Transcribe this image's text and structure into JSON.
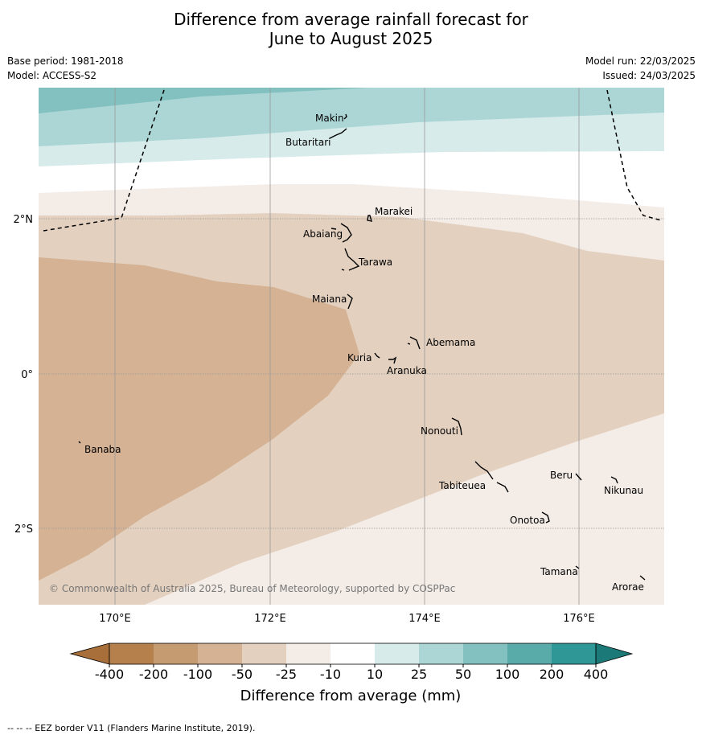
{
  "title_line1": "Difference from average rainfall forecast for",
  "title_line2": "June to August 2025",
  "base_period": "Base period: 1981-2018",
  "model": "Model: ACCESS-S2",
  "model_run": "Model run: 22/03/2025",
  "issued": "Issued: 24/03/2025",
  "lat_labels": [
    "2°N",
    "0°",
    "2°S"
  ],
  "lon_labels": [
    "170°E",
    "172°E",
    "174°E",
    "176°E"
  ],
  "copyright": "© Commonwealth of Australia 2025, Bureau of Meteorology, supported by COSPPac",
  "places": [
    "Makin",
    "Butaritari",
    "Marakei",
    "Abaiang",
    "Tarawa",
    "Maiana",
    "Abemama",
    "Kuria",
    "Aranuka",
    "Nonouti",
    "Banaba",
    "Tabiteuea",
    "Beru",
    "Nikunau",
    "Onotoa",
    "Tamana",
    "Arorae"
  ],
  "legend": {
    "ticks": [
      "-400",
      "-200",
      "-100",
      "-50",
      "-25",
      "-10",
      "10",
      "25",
      "50",
      "100",
      "200",
      "400"
    ],
    "colors": [
      "#a86f3a",
      "#b6804c",
      "#c59b71",
      "#d4b293",
      "#e3d0bf",
      "#f3ece7",
      "#ffffff",
      "#d6ebea",
      "#acd6d5",
      "#82c1bf",
      "#59abaa",
      "#2f9896",
      "#1b7a78"
    ],
    "label": "Difference from average (mm)"
  },
  "footnote": "--  --  -- EEZ border V11 (Flanders Marine Institute, 2019)."
}
